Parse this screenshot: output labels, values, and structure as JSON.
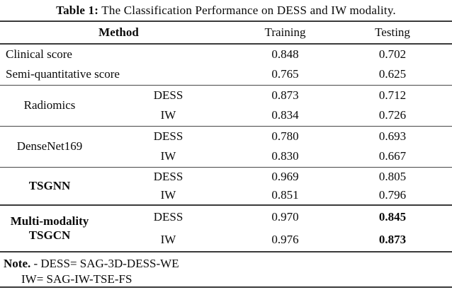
{
  "caption": {
    "label": "Table 1:",
    "text": "The Classification Performance on DESS and IW modality."
  },
  "headers": {
    "method": "Method",
    "training": "Training",
    "testing": "Testing"
  },
  "rows": {
    "clinical": {
      "method": "Clinical score",
      "training": "0.848",
      "testing": "0.702"
    },
    "semi": {
      "method": "Semi-quantitative score",
      "training": "0.765",
      "testing": "0.625"
    },
    "radiomics": {
      "method": "Radiomics",
      "dess": {
        "modality": "DESS",
        "training": "0.873",
        "testing": "0.712"
      },
      "iw": {
        "modality": "IW",
        "training": "0.834",
        "testing": "0.726"
      }
    },
    "densenet": {
      "method": "DenseNet169",
      "dess": {
        "modality": "DESS",
        "training": "0.780",
        "testing": "0.693"
      },
      "iw": {
        "modality": "IW",
        "training": "0.830",
        "testing": "0.667"
      }
    },
    "tsgnn": {
      "method": "TSGNN",
      "dess": {
        "modality": "DESS",
        "training": "0.969",
        "testing": "0.805"
      },
      "iw": {
        "modality": "IW",
        "training": "0.851",
        "testing": "0.796"
      }
    },
    "multimodality": {
      "method_line1": "Multi-modality",
      "method_line2": "TSGCN",
      "dess": {
        "modality": "DESS",
        "training": "0.970",
        "testing": "0.845"
      },
      "iw": {
        "modality": "IW",
        "training": "0.976",
        "testing": "0.873"
      }
    }
  },
  "note": {
    "label": "Note.",
    "line1": "- DESS= SAG-3D-DESS-WE",
    "line2": "IW= SAG-IW-TSE-FS"
  },
  "colors": {
    "rule": "#3a3a3a",
    "text": "#0a0a0a",
    "background": "#ffffff"
  }
}
